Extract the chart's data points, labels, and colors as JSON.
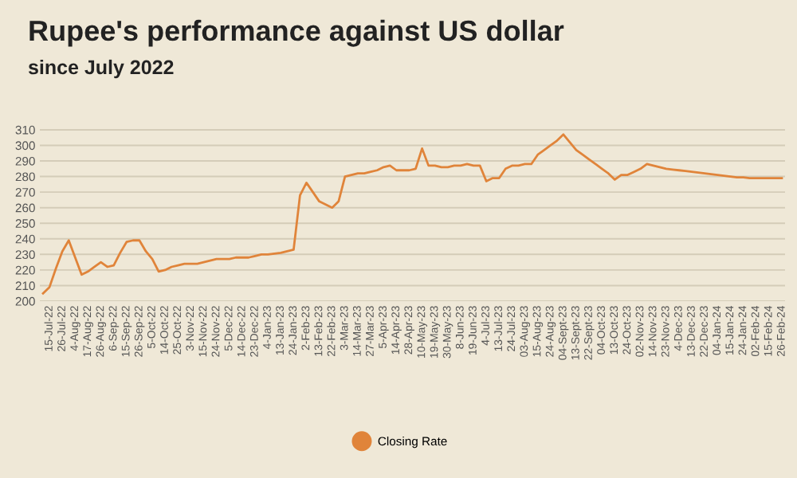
{
  "chart_data": {
    "type": "line",
    "title": "Rupee's performance against US dollar",
    "subtitle": "since July 2022",
    "categories": [
      null,
      "15-Jul-22",
      null,
      "26-Jul-22",
      null,
      "4-Aug-22",
      null,
      "17-Aug-22",
      null,
      "26-Aug-22",
      null,
      "6-Sep-22",
      null,
      "15-Sep-22",
      null,
      "26-Sep-22",
      null,
      "5-Oct-22",
      null,
      "14-Oct-22",
      null,
      "25-Oct-22",
      null,
      "3-Nov-22",
      null,
      "15-Nov-22",
      null,
      "24-Nov-22",
      null,
      "5-Dec-22",
      null,
      "14-Dec-22",
      null,
      "23-Dec-22",
      null,
      "4-Jan-23",
      null,
      "13-Jan-23",
      null,
      "24-Jan-23",
      null,
      "2-Feb-23",
      null,
      "13-Feb-23",
      null,
      "22-Feb-23",
      null,
      "3-Mar-23",
      null,
      "14-Mar-23",
      null,
      "27-Mar-23",
      null,
      "5-Apr-23",
      null,
      "14-Apr-23",
      null,
      "28-Apr-23",
      null,
      "10-May-23",
      null,
      "19-May-23",
      null,
      "30-May-23",
      null,
      "8-Jun-23",
      null,
      "19-Jun-23",
      null,
      "4-Jul-23",
      null,
      "13-Jul-23",
      null,
      "24-Jul-23",
      null,
      "03-Aug-23",
      null,
      "15-Aug-23",
      null,
      "24-Aug-23",
      null,
      "04-Sept-23",
      null,
      "13-Sept-23",
      null,
      "22-Sept-23",
      null,
      "04-Oct-23",
      null,
      "13-Oct-23",
      null,
      "24-Oct-23",
      null,
      "02-Nov-23",
      null,
      "14-Nov-23",
      null,
      "23-Nov-23",
      null,
      "4-Dec-23",
      null,
      "13-Dec-23",
      null,
      "22-Dec-23",
      null,
      "04-Jan-24",
      null,
      "15-Jan-24",
      null,
      "24-Jan-24",
      null,
      "02-Feb-24",
      null,
      "15-Feb-24",
      null,
      "26-Feb-24"
    ],
    "series": [
      {
        "name": "Closing Rate",
        "color": "#e0843a",
        "values": [
          205,
          209,
          221,
          232,
          239,
          228,
          217,
          219,
          222,
          225,
          222,
          223,
          231,
          238,
          239,
          239,
          232,
          227,
          219,
          220,
          222,
          223,
          224,
          224,
          224,
          225,
          226,
          227,
          227,
          227,
          228,
          228,
          228,
          229,
          230,
          230,
          230.5,
          231,
          232,
          233,
          268,
          276,
          270,
          264,
          262,
          260,
          264,
          280,
          281,
          282,
          282,
          283,
          284,
          286,
          287,
          284,
          284,
          284,
          285,
          298,
          287,
          287,
          286,
          286,
          287,
          287,
          288,
          287,
          287,
          277,
          279,
          279,
          285,
          287,
          287,
          288,
          288,
          294,
          297,
          300,
          303,
          307,
          302,
          297,
          294,
          291,
          288,
          285,
          282,
          278,
          281,
          281,
          283,
          285,
          288,
          287,
          286,
          285,
          284.5,
          284,
          283.5,
          283,
          282.5,
          282,
          281.5,
          281,
          280.5,
          280,
          279.5,
          279.5,
          279,
          279,
          279,
          279,
          279,
          279
        ]
      }
    ],
    "ylim": [
      200,
      312
    ],
    "yticks": [
      200,
      210,
      220,
      230,
      240,
      250,
      260,
      270,
      280,
      290,
      300,
      310
    ],
    "grid": "y",
    "legend": "bottom",
    "marker": "none",
    "line_style": "solid"
  }
}
